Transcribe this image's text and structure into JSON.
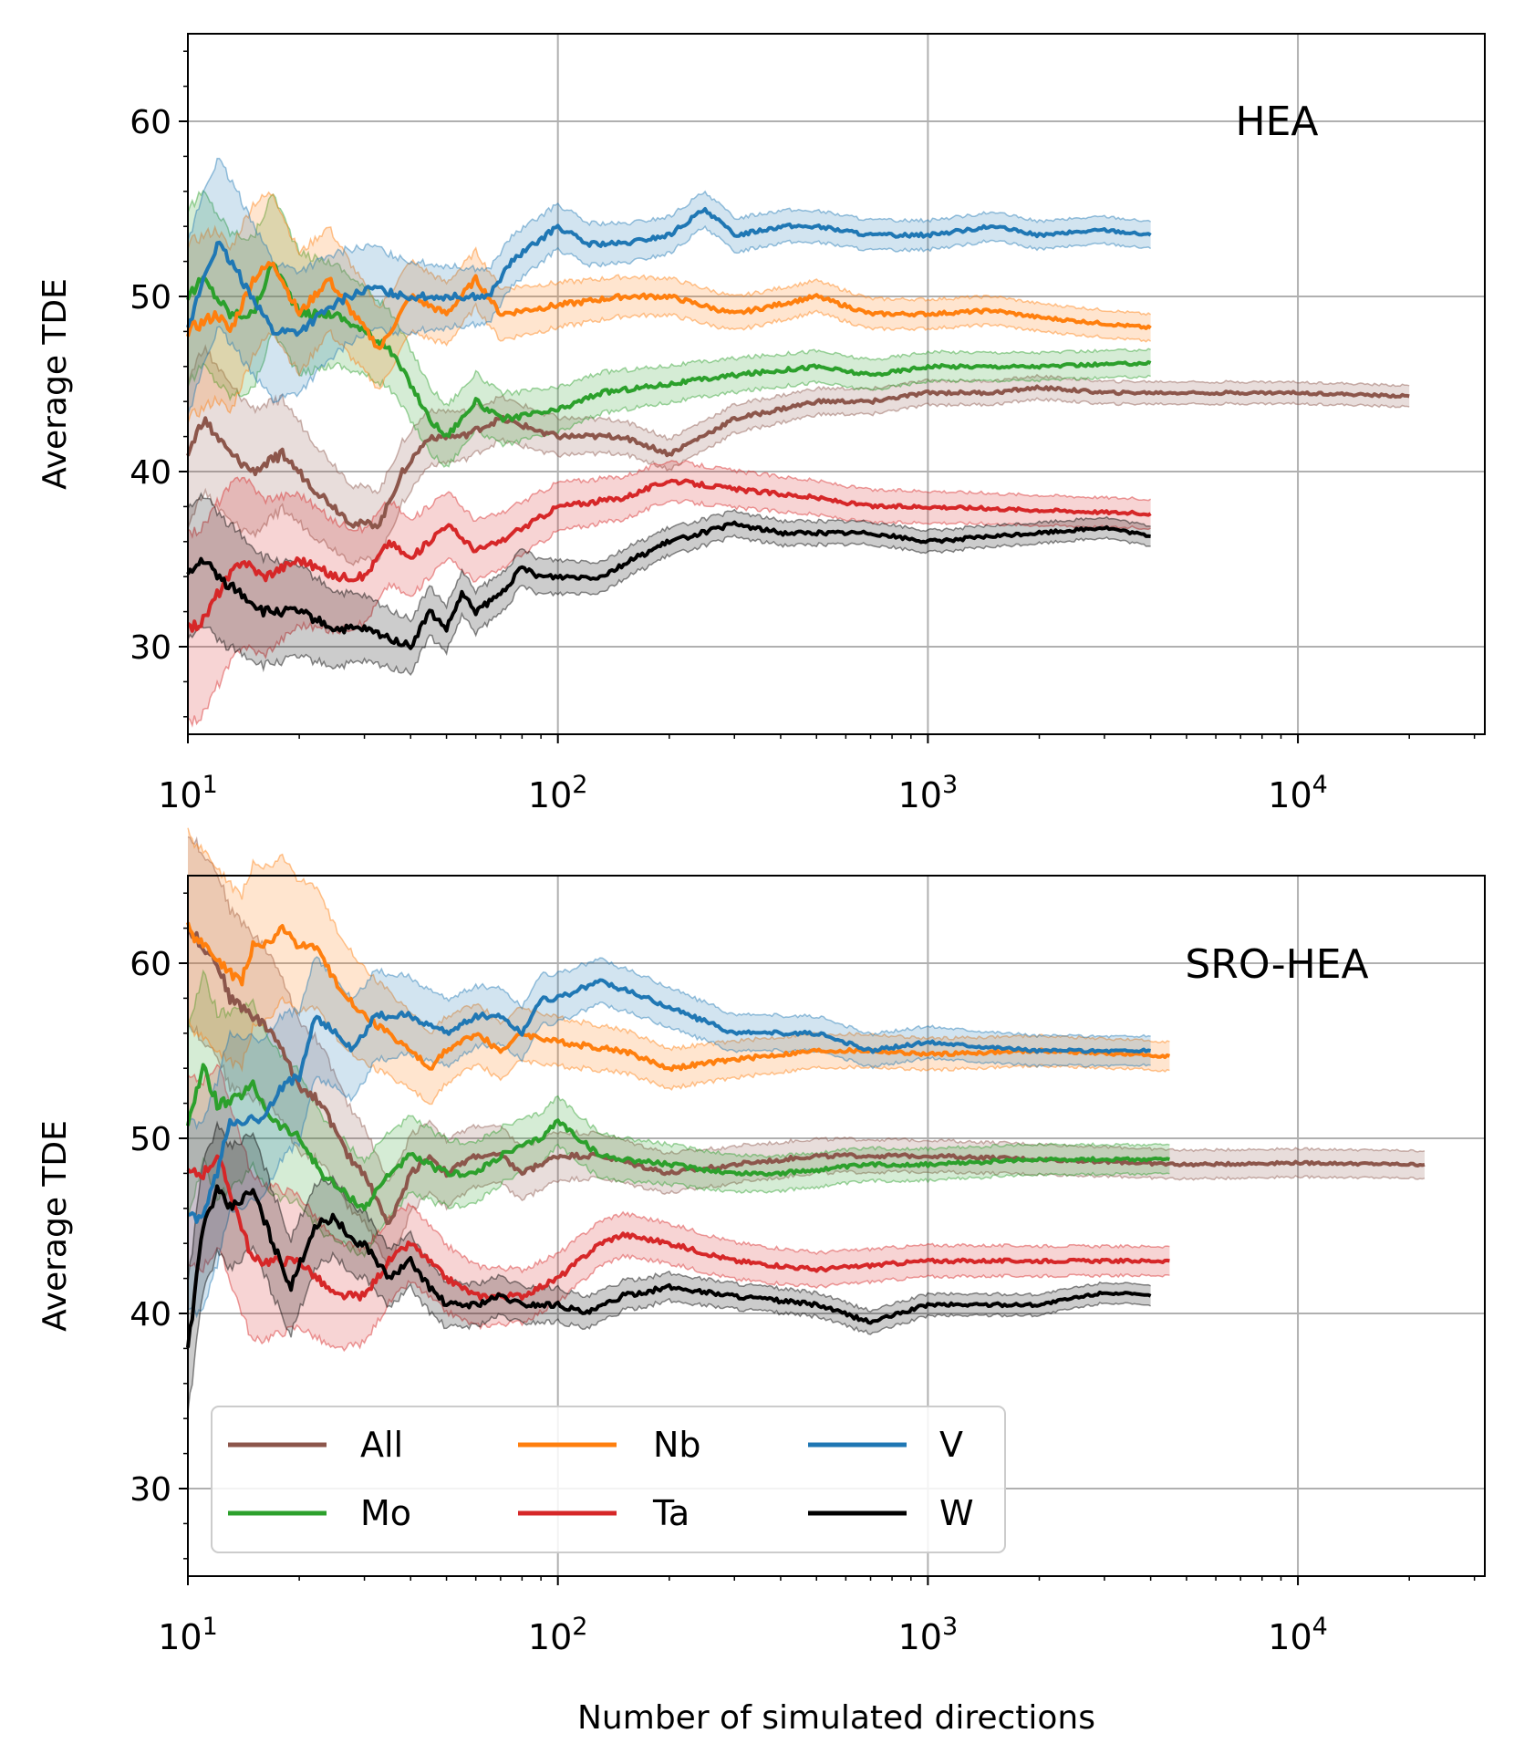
{
  "colors": {
    "All": "#8c564b",
    "Mo": "#2ca02c",
    "Nb": "#ff7f0e",
    "Ta": "#d62728",
    "V": "#1f77b4",
    "W": "#000000"
  },
  "legend": {
    "entries": [
      "All",
      "Nb",
      "V",
      "Mo",
      "Ta",
      "W"
    ]
  },
  "chart_data": [
    {
      "type": "line",
      "title": "HEA",
      "xlabel": "",
      "ylabel": "Average TDE",
      "xscale": "log",
      "xlim": [
        10,
        32000
      ],
      "ylim": [
        25,
        65
      ],
      "yticks": [
        "30",
        "40",
        "50",
        "60"
      ],
      "xticks": [
        {
          "base": "10",
          "exp": "1"
        },
        {
          "base": "10",
          "exp": "2"
        },
        {
          "base": "10",
          "exp": "3"
        },
        {
          "base": "10",
          "exp": "4"
        }
      ],
      "grid": true,
      "series": [
        {
          "name": "All",
          "band": 1.0,
          "x": [
            10,
            11,
            13,
            15,
            18,
            22,
            28,
            33,
            38,
            45,
            55,
            70,
            100,
            150,
            200,
            300,
            500,
            700,
            1000,
            1500,
            2000,
            3000,
            5000,
            10000,
            20000
          ],
          "y": [
            41,
            43,
            41,
            40,
            41,
            39,
            37,
            37,
            40,
            42,
            42,
            43,
            42,
            42,
            41,
            43,
            44,
            44,
            44.5,
            44.5,
            44.8,
            44.5,
            44.5,
            44.5,
            44.3
          ]
        },
        {
          "name": "Mo",
          "band": 1.2,
          "x": [
            10,
            11,
            13,
            15,
            17,
            20,
            25,
            30,
            35,
            40,
            45,
            50,
            60,
            70,
            100,
            130,
            200,
            300,
            500,
            700,
            1000,
            2000,
            4000
          ],
          "y": [
            50,
            51,
            49,
            49,
            52,
            49,
            49,
            48,
            47,
            45,
            43,
            42,
            44,
            43,
            43.5,
            44.5,
            45,
            45.5,
            46,
            45.5,
            46,
            46,
            46.2
          ]
        },
        {
          "name": "Nb",
          "band": 1.2,
          "x": [
            10,
            12,
            13,
            15,
            17,
            20,
            24,
            28,
            33,
            40,
            50,
            60,
            70,
            100,
            150,
            200,
            300,
            500,
            700,
            1000,
            1500,
            2000,
            4000
          ],
          "y": [
            48,
            49,
            48,
            51,
            52,
            49,
            51,
            49,
            47,
            50,
            49,
            51,
            49,
            49.5,
            50,
            50,
            49,
            50,
            49,
            49,
            49.2,
            48.8,
            48.2
          ]
        },
        {
          "name": "Ta",
          "band": 1.3,
          "x": [
            10,
            11,
            12,
            14,
            16,
            20,
            25,
            30,
            35,
            40,
            50,
            60,
            70,
            100,
            150,
            200,
            300,
            500,
            700,
            1000,
            2000,
            4000
          ],
          "y": [
            31,
            31.5,
            33,
            35,
            34,
            35,
            34,
            34,
            36,
            35,
            37,
            35.5,
            36,
            38,
            38.5,
            39.5,
            39,
            38.5,
            38,
            38,
            37.8,
            37.6
          ]
        },
        {
          "name": "V",
          "band": 1.2,
          "x": [
            10,
            11,
            12,
            13,
            15,
            17,
            20,
            23,
            27,
            32,
            38,
            45,
            55,
            65,
            75,
            100,
            120,
            150,
            200,
            250,
            300,
            400,
            500,
            700,
            1000,
            1500,
            2000,
            3000,
            4000
          ],
          "y": [
            48,
            51,
            53,
            52,
            50,
            48,
            48,
            49,
            50,
            50.5,
            50,
            50,
            50,
            50,
            52,
            54,
            53,
            53,
            53.5,
            55,
            53.5,
            54,
            54,
            53.5,
            53.5,
            54,
            53.5,
            53.8,
            53.5
          ]
        },
        {
          "name": "W",
          "band": 0.9,
          "x": [
            10,
            11,
            12,
            14,
            16,
            20,
            25,
            30,
            35,
            40,
            45,
            50,
            55,
            60,
            70,
            80,
            90,
            100,
            130,
            160,
            200,
            300,
            400,
            500,
            700,
            1000,
            1500,
            2000,
            3000,
            4000
          ],
          "y": [
            34,
            35,
            34,
            33,
            32,
            32,
            31,
            31,
            30.5,
            30,
            32,
            31,
            33,
            32,
            33,
            34.5,
            34,
            34,
            34,
            35,
            36,
            37,
            36.5,
            36.5,
            36.5,
            36,
            36.3,
            36.5,
            36.8,
            36.3
          ]
        }
      ]
    },
    {
      "type": "line",
      "title": "SRO-HEA",
      "xlabel": "Number of simulated directions",
      "ylabel": "Average TDE",
      "xscale": "log",
      "xlim": [
        10,
        32000
      ],
      "ylim": [
        25,
        65
      ],
      "yticks": [
        "30",
        "40",
        "50",
        "60"
      ],
      "xticks": [
        {
          "base": "10",
          "exp": "1"
        },
        {
          "base": "10",
          "exp": "2"
        },
        {
          "base": "10",
          "exp": "3"
        },
        {
          "base": "10",
          "exp": "4"
        }
      ],
      "grid": true,
      "series": [
        {
          "name": "All",
          "band": 1.3,
          "x": [
            10,
            11,
            12,
            13,
            15,
            17,
            20,
            23,
            27,
            30,
            35,
            40,
            45,
            50,
            60,
            70,
            80,
            100,
            130,
            200,
            300,
            500,
            700,
            1000,
            2000,
            5000,
            10000,
            22000
          ],
          "y": [
            62,
            61,
            60,
            58,
            57,
            56,
            53,
            52,
            49,
            48,
            45,
            48,
            49,
            48,
            49,
            49,
            48,
            49,
            49,
            48,
            48.5,
            49,
            49,
            49,
            48.8,
            48.5,
            48.6,
            48.5
          ]
        },
        {
          "name": "Mo",
          "band": 1.3,
          "x": [
            10,
            11,
            12,
            13,
            15,
            17,
            20,
            23,
            26,
            30,
            35,
            40,
            50,
            60,
            70,
            90,
            100,
            130,
            200,
            300,
            400,
            500,
            700,
            1000,
            2000,
            4500
          ],
          "y": [
            51,
            54,
            52,
            52,
            53,
            51,
            50,
            48,
            47,
            46,
            48,
            49,
            48,
            48,
            49,
            50,
            51,
            49,
            48.5,
            48,
            48,
            48.2,
            48.5,
            48.5,
            48.8,
            48.8
          ]
        },
        {
          "name": "Nb",
          "band": 1.3,
          "x": [
            10,
            11,
            12,
            14,
            15,
            16,
            18,
            20,
            22,
            25,
            30,
            35,
            40,
            45,
            50,
            60,
            70,
            80,
            100,
            150,
            200,
            300,
            500,
            700,
            1000,
            2000,
            4500
          ],
          "y": [
            62,
            61,
            60,
            59,
            61,
            61,
            62,
            61,
            61,
            59,
            57,
            56,
            55,
            54,
            55,
            56,
            55,
            56,
            55.5,
            55,
            54,
            54.5,
            55,
            55,
            54.8,
            55,
            54.7
          ]
        },
        {
          "name": "Ta",
          "band": 1.3,
          "x": [
            10,
            11,
            12,
            13,
            15,
            17,
            20,
            25,
            30,
            35,
            40,
            50,
            60,
            80,
            100,
            130,
            150,
            200,
            300,
            500,
            1000,
            2000,
            4500
          ],
          "y": [
            48,
            48,
            49,
            47,
            43,
            43,
            43,
            41,
            41,
            43,
            44,
            42,
            41,
            41,
            42,
            44,
            44.5,
            44,
            43,
            42.5,
            43,
            43,
            43
          ]
        },
        {
          "name": "V",
          "band": 1.3,
          "x": [
            10,
            11,
            12,
            13,
            14,
            16,
            18,
            20,
            22,
            25,
            28,
            32,
            40,
            50,
            60,
            70,
            80,
            90,
            100,
            130,
            150,
            200,
            300,
            500,
            700,
            1000,
            2000,
            4000
          ],
          "y": [
            45.5,
            45.5,
            48,
            51,
            51,
            51,
            53,
            53.5,
            57,
            56,
            55,
            57,
            57,
            56,
            57,
            57,
            56,
            58,
            58,
            59,
            58.5,
            57.5,
            56,
            56,
            55,
            55.5,
            55,
            55
          ]
        },
        {
          "name": "W",
          "band": 0.9,
          "x": [
            10,
            11,
            12,
            13,
            15,
            17,
            19,
            22,
            25,
            28,
            30,
            35,
            40,
            45,
            50,
            60,
            70,
            80,
            100,
            120,
            150,
            200,
            300,
            500,
            700,
            1000,
            1500,
            2000,
            3000,
            4000
          ],
          "y": [
            38,
            45,
            47,
            46,
            47,
            44,
            41.5,
            45,
            45.5,
            44,
            44,
            42,
            43,
            41.5,
            40.5,
            40.5,
            41,
            40.5,
            40.5,
            40,
            41,
            41.5,
            41,
            40.5,
            39.5,
            40.5,
            40.5,
            40.5,
            41.2,
            41
          ]
        }
      ]
    }
  ]
}
